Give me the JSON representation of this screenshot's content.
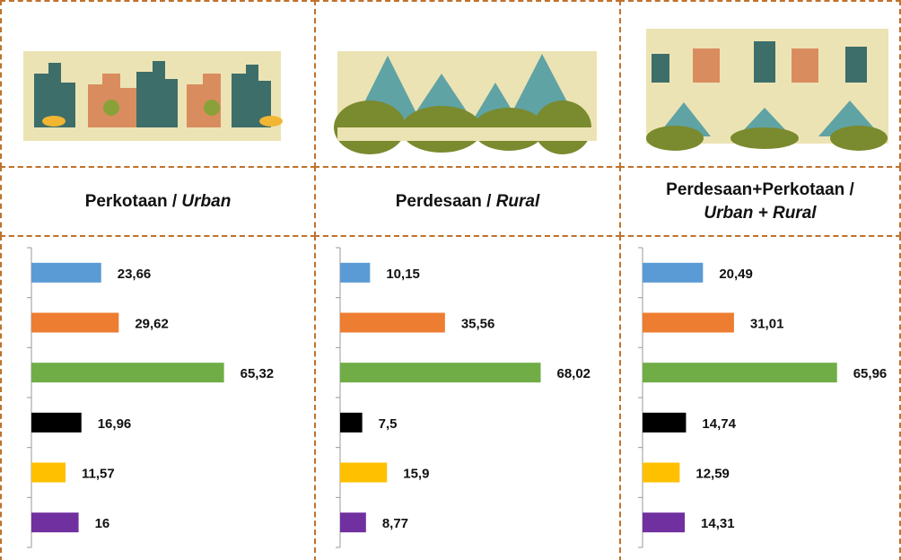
{
  "chart_data": [
    {
      "type": "bar",
      "orientation": "horizontal",
      "title": [
        "Perkotaan /",
        "Urban"
      ],
      "values": [
        23.66,
        29.62,
        65.32,
        16.96,
        11.57,
        16
      ],
      "value_labels": [
        "23,66",
        "29,62",
        "65,32",
        "16,96",
        "11,57",
        "16"
      ],
      "colors": [
        "#5b9bd5",
        "#ed7d31",
        "#70ad47",
        "#000000",
        "#ffc000",
        "#7030a0"
      ],
      "xlim": [
        0,
        70
      ]
    },
    {
      "type": "bar",
      "orientation": "horizontal",
      "title": [
        "Perdesaan /",
        "Rural"
      ],
      "values": [
        10.15,
        35.56,
        68.02,
        7.5,
        15.9,
        8.77
      ],
      "value_labels": [
        "10,15",
        "35,56",
        "68,02",
        "7,5",
        "15,9",
        "8,77"
      ],
      "colors": [
        "#5b9bd5",
        "#ed7d31",
        "#70ad47",
        "#000000",
        "#ffc000",
        "#7030a0"
      ],
      "xlim": [
        0,
        70
      ]
    },
    {
      "type": "bar",
      "orientation": "horizontal",
      "title": [
        "Perdesaan+Perkotaan /",
        "Urban + Rural"
      ],
      "values": [
        20.49,
        31.01,
        65.96,
        14.74,
        12.59,
        14.31
      ],
      "value_labels": [
        "20,49",
        "31,01",
        "65,96",
        "14,74",
        "12,59",
        "14,31"
      ],
      "colors": [
        "#5b9bd5",
        "#ed7d31",
        "#70ad47",
        "#000000",
        "#ffc000",
        "#7030a0"
      ],
      "xlim": [
        0,
        70
      ]
    }
  ]
}
